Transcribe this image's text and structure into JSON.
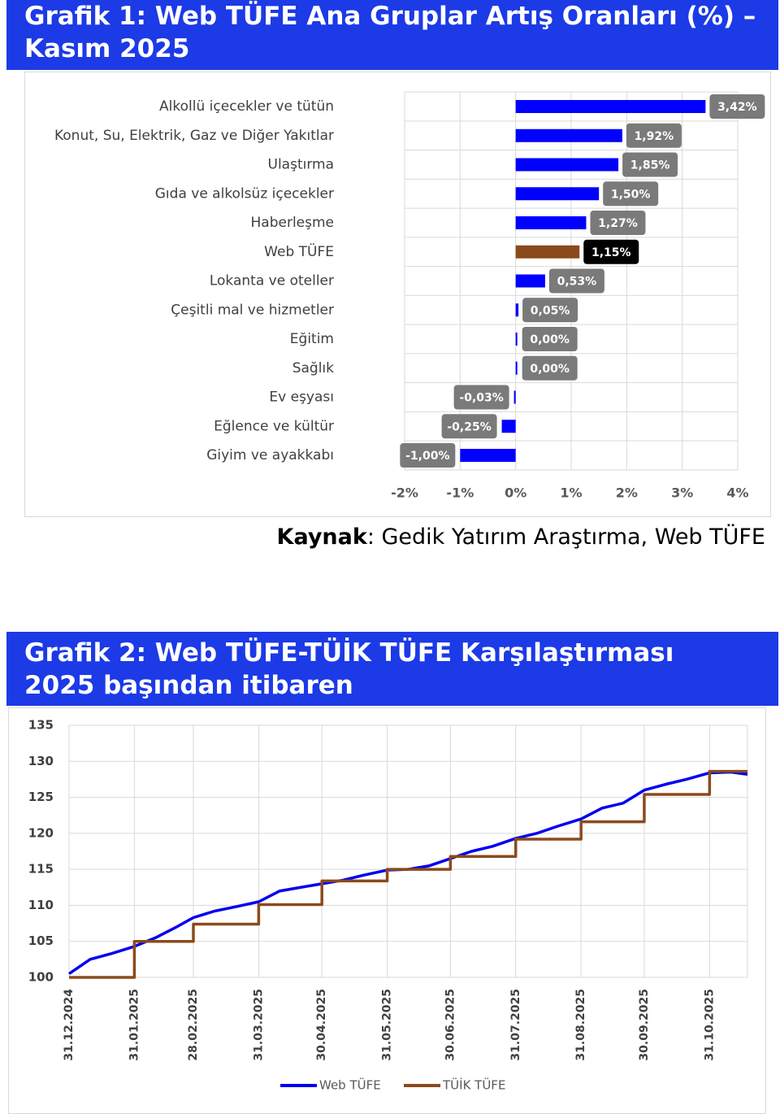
{
  "chart_data": [
    {
      "type": "hbar",
      "title": "Grafik 1: Web TÜFE Ana Gruplar Artış Oranları (%) –\nKasım  2025",
      "categories": [
        "Alkollü içecekler ve tütün",
        "Konut, Su, Elektrik, Gaz ve Diğer Yakıtlar",
        "Ulaştırma",
        "Gıda ve alkolsüz içecekler",
        "Haberleşme",
        "Web TÜFE",
        "Lokanta ve oteller",
        "Çeşitli mal ve hizmetler",
        "Eğitim",
        "Sağlık",
        "Ev eşyası",
        "Eğlence ve kültür",
        "Giyim ve ayakkabı"
      ],
      "values": [
        3.42,
        1.92,
        1.85,
        1.5,
        1.27,
        1.15,
        0.53,
        0.05,
        0.0,
        0.0,
        -0.03,
        -0.25,
        -1.0
      ],
      "value_labels": [
        "3,42%",
        "1,92%",
        "1,85%",
        "1,50%",
        "1,27%",
        "1,15%",
        "0,53%",
        "0,05%",
        "0,00%",
        "0,00%",
        "-0,03%",
        "-0,25%",
        "-1,00%"
      ],
      "colors": [
        "#0000ff",
        "#0000ff",
        "#0000ff",
        "#0000ff",
        "#0000ff",
        "#8b4a1c",
        "#0000ff",
        "#0000ff",
        "#0000ff",
        "#0000ff",
        "#0000ff",
        "#0000ff",
        "#0000ff"
      ],
      "label_colors": [
        "#7a7a7a",
        "#7a7a7a",
        "#7a7a7a",
        "#7a7a7a",
        "#7a7a7a",
        "#000000",
        "#7a7a7a",
        "#7a7a7a",
        "#7a7a7a",
        "#7a7a7a",
        "#7a7a7a",
        "#7a7a7a",
        "#7a7a7a"
      ],
      "xlim": [
        -2,
        4
      ],
      "xticks": [
        {
          "value": -2,
          "label": "-2%"
        },
        {
          "value": -1,
          "label": "-1%"
        },
        {
          "value": 0,
          "label": "0%"
        },
        {
          "value": 1,
          "label": "1%"
        },
        {
          "value": 2,
          "label": "2%"
        },
        {
          "value": 3,
          "label": "3%"
        },
        {
          "value": 4,
          "label": "4%"
        }
      ],
      "grid": true
    },
    {
      "type": "line",
      "title": "Grafik 2: Web TÜFE-TÜİK TÜFE Karşılaştırması\n2025 başından itibaren",
      "xlim": [
        "31.12.2024",
        "18.11.2025"
      ],
      "xticks": [
        "31.12.2024",
        "31.01.2025",
        "28.02.2025",
        "31.03.2025",
        "30.04.2025",
        "31.05.2025",
        "30.06.2025",
        "31.07.2025",
        "31.08.2025",
        "30.09.2025",
        "31.10.2025"
      ],
      "ylim": [
        100,
        135
      ],
      "yticks": [
        100,
        105,
        110,
        115,
        120,
        125,
        130,
        135
      ],
      "grid": true,
      "legend": "bottom",
      "series": [
        {
          "name": "Web TÜFE",
          "color": "#0000ee",
          "step": false,
          "x": [
            "31.12.2024",
            "10.01.2025",
            "20.01.2025",
            "31.01.2025",
            "10.02.2025",
            "20.02.2025",
            "28.02.2025",
            "10.03.2025",
            "20.03.2025",
            "31.03.2025",
            "10.04.2025",
            "20.04.2025",
            "30.04.2025",
            "10.05.2025",
            "20.05.2025",
            "31.05.2025",
            "10.06.2025",
            "20.06.2025",
            "30.06.2025",
            "10.07.2025",
            "20.07.2025",
            "31.07.2025",
            "10.08.2025",
            "20.08.2025",
            "31.08.2025",
            "10.09.2025",
            "20.09.2025",
            "30.09.2025",
            "10.10.2025",
            "20.10.2025",
            "31.10.2025",
            "10.11.2025",
            "18.11.2025"
          ],
          "values": [
            100.5,
            102.5,
            103.3,
            104.3,
            105.5,
            107.0,
            108.3,
            109.2,
            109.8,
            110.5,
            112.0,
            112.5,
            113.0,
            113.5,
            114.2,
            114.9,
            115.0,
            115.5,
            116.5,
            117.5,
            118.2,
            119.3,
            120.0,
            121.0,
            122.0,
            123.5,
            124.2,
            126.0,
            126.8,
            127.5,
            128.4,
            128.5,
            128.2
          ]
        },
        {
          "name": "TÜİK TÜFE",
          "color": "#8b4a1c",
          "step": true,
          "x": [
            "31.12.2024",
            "31.01.2025",
            "28.02.2025",
            "31.03.2025",
            "30.04.2025",
            "31.05.2025",
            "30.06.2025",
            "31.07.2025",
            "31.08.2025",
            "30.09.2025",
            "31.10.2025"
          ],
          "values": [
            100.0,
            105.0,
            107.4,
            110.1,
            113.4,
            115.0,
            116.8,
            119.2,
            121.6,
            125.4,
            128.6
          ]
        }
      ]
    }
  ],
  "source": {
    "label": "Kaynak",
    "text": ": Gedik Yatırım Araştırma, Web TÜFE"
  }
}
